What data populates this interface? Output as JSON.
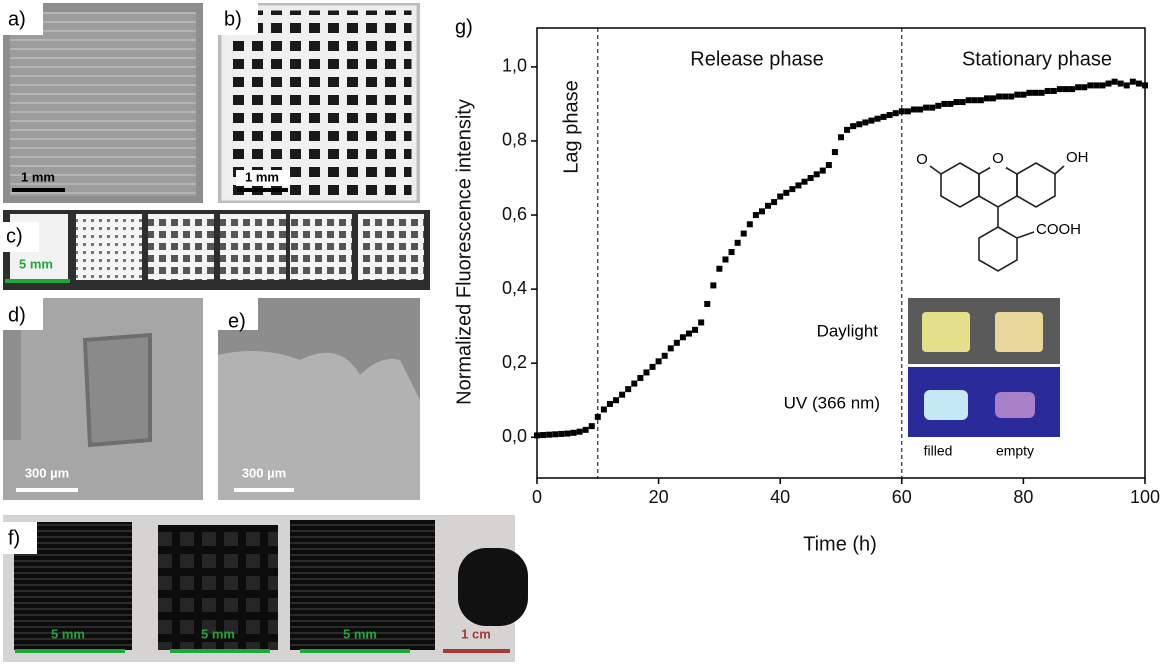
{
  "panels": [
    {
      "label": "a)",
      "scale_bars": [
        "1 mm"
      ]
    },
    {
      "label": "b)",
      "scale_bars": [
        "1 mm"
      ]
    },
    {
      "label": "c)",
      "scale_bars": [
        "5 mm"
      ]
    },
    {
      "label": "d)",
      "scale_bars": [
        "300 µm"
      ]
    },
    {
      "label": "e)",
      "scale_bars": [
        "300 µm"
      ]
    },
    {
      "label": "f)",
      "scale_bars": [
        "5 mm",
        "5 mm",
        "5 mm",
        "1 cm"
      ]
    }
  ],
  "chart_data": {
    "type": "scatter",
    "panel_label": "g)",
    "x_label": "Time (h)",
    "y_label": "Normalized Fluorescence intensity",
    "x": [
      0,
      1,
      2,
      3,
      4,
      5,
      6,
      7,
      8,
      9,
      10,
      11,
      12,
      13,
      14,
      15,
      16,
      17,
      18,
      19,
      20,
      21,
      22,
      23,
      24,
      25,
      26,
      27,
      28,
      29,
      30,
      31,
      32,
      33,
      34,
      35,
      36,
      37,
      38,
      39,
      40,
      41,
      42,
      43,
      44,
      45,
      46,
      47,
      48,
      49,
      50,
      51,
      52,
      53,
      54,
      55,
      56,
      57,
      58,
      59,
      60,
      61,
      62,
      63,
      64,
      65,
      66,
      67,
      68,
      69,
      70,
      71,
      72,
      73,
      74,
      75,
      76,
      77,
      78,
      79,
      80,
      81,
      82,
      83,
      84,
      85,
      86,
      87,
      88,
      89,
      90,
      91,
      92,
      93,
      94,
      95,
      96,
      97,
      98,
      99,
      100
    ],
    "values": [
      0.005,
      0.006,
      0.007,
      0.008,
      0.009,
      0.01,
      0.012,
      0.015,
      0.02,
      0.03,
      0.055,
      0.075,
      0.09,
      0.1,
      0.115,
      0.13,
      0.145,
      0.16,
      0.175,
      0.19,
      0.205,
      0.22,
      0.24,
      0.255,
      0.27,
      0.28,
      0.29,
      0.31,
      0.36,
      0.41,
      0.455,
      0.48,
      0.5,
      0.525,
      0.55,
      0.575,
      0.6,
      0.61,
      0.625,
      0.635,
      0.65,
      0.66,
      0.67,
      0.68,
      0.69,
      0.7,
      0.71,
      0.72,
      0.735,
      0.77,
      0.81,
      0.83,
      0.84,
      0.845,
      0.85,
      0.855,
      0.86,
      0.865,
      0.87,
      0.875,
      0.88,
      0.88,
      0.885,
      0.885,
      0.89,
      0.89,
      0.895,
      0.9,
      0.9,
      0.905,
      0.905,
      0.91,
      0.91,
      0.91,
      0.915,
      0.915,
      0.92,
      0.92,
      0.92,
      0.925,
      0.925,
      0.93,
      0.93,
      0.93,
      0.935,
      0.935,
      0.94,
      0.94,
      0.94,
      0.945,
      0.945,
      0.95,
      0.95,
      0.95,
      0.955,
      0.96,
      0.955,
      0.95,
      0.96,
      0.955,
      0.95
    ],
    "color": "#000000",
    "xlim": [
      0,
      100
    ],
    "ylim": [
      -0.11,
      1.105
    ],
    "xticks": [
      0,
      20,
      40,
      60,
      80,
      100
    ],
    "yticks": [
      {
        "value": 0,
        "label": "0,0"
      },
      {
        "value": 0.2,
        "label": "0,2"
      },
      {
        "value": 0.4,
        "label": "0,4"
      },
      {
        "value": 0.6,
        "label": "0,6"
      },
      {
        "value": 0.8,
        "label": "0,8"
      },
      {
        "value": 1,
        "label": "1,0"
      }
    ],
    "phase_boundaries": [
      10,
      60
    ],
    "annotations": [
      "Lag phase",
      "Release phase",
      "Stationary phase"
    ],
    "inset": {
      "rows": [
        "Daylight",
        "UV (366 nm)"
      ],
      "samples": [
        "filled",
        "empty"
      ],
      "structure_labels": [
        "O",
        "O",
        "OH",
        "COOH"
      ]
    }
  }
}
